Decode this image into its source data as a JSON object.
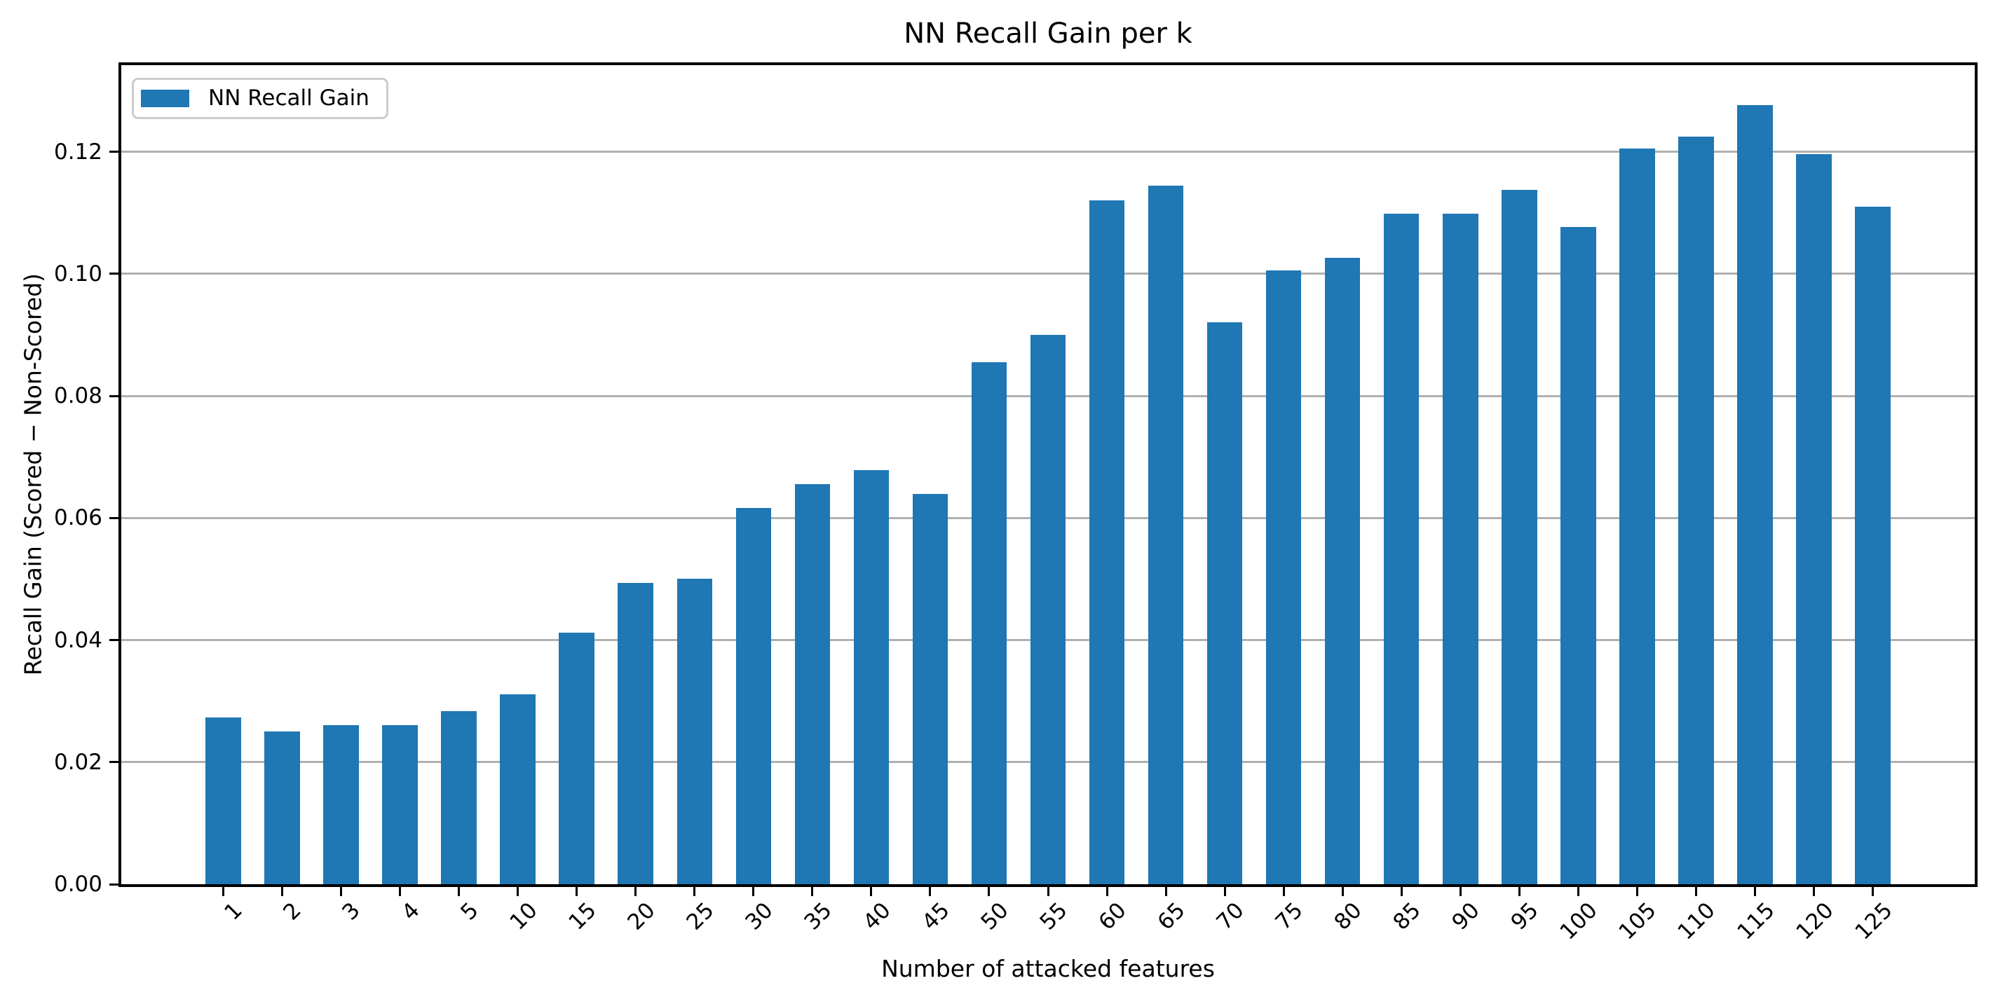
{
  "chart_data": {
    "type": "bar",
    "title": "NN Recall Gain per k",
    "xlabel": "Number of attacked features",
    "ylabel": "Recall Gain (Scored − Non-Scored)",
    "legend": [
      "NN Recall Gain"
    ],
    "legend_position": "upper left",
    "categories": [
      "1",
      "2",
      "3",
      "4",
      "5",
      "10",
      "15",
      "20",
      "25",
      "30",
      "35",
      "40",
      "45",
      "50",
      "55",
      "60",
      "65",
      "70",
      "75",
      "80",
      "85",
      "90",
      "95",
      "100",
      "105",
      "110",
      "115",
      "120",
      "125"
    ],
    "values": [
      0.0273,
      0.025,
      0.0261,
      0.0261,
      0.0283,
      0.0311,
      0.0412,
      0.0494,
      0.05,
      0.0616,
      0.0655,
      0.0678,
      0.0639,
      0.0855,
      0.09,
      0.112,
      0.1144,
      0.0921,
      0.1006,
      0.1026,
      0.1099,
      0.1099,
      0.1138,
      0.1077,
      0.1205,
      0.1225,
      0.1277,
      0.1196,
      0.111
    ],
    "ytick_labels": [
      "0.00",
      "0.02",
      "0.04",
      "0.06",
      "0.08",
      "0.10",
      "0.12"
    ],
    "yticks": [
      0,
      0.02,
      0.04,
      0.06,
      0.08,
      0.1,
      0.12
    ],
    "ylim": [
      0,
      0.1342
    ],
    "grid": "horizontal",
    "xtick_rotation": 45,
    "bar_color": "#1f77b4",
    "grid_color": "#b0b0b0",
    "spine_color": "#000000"
  }
}
